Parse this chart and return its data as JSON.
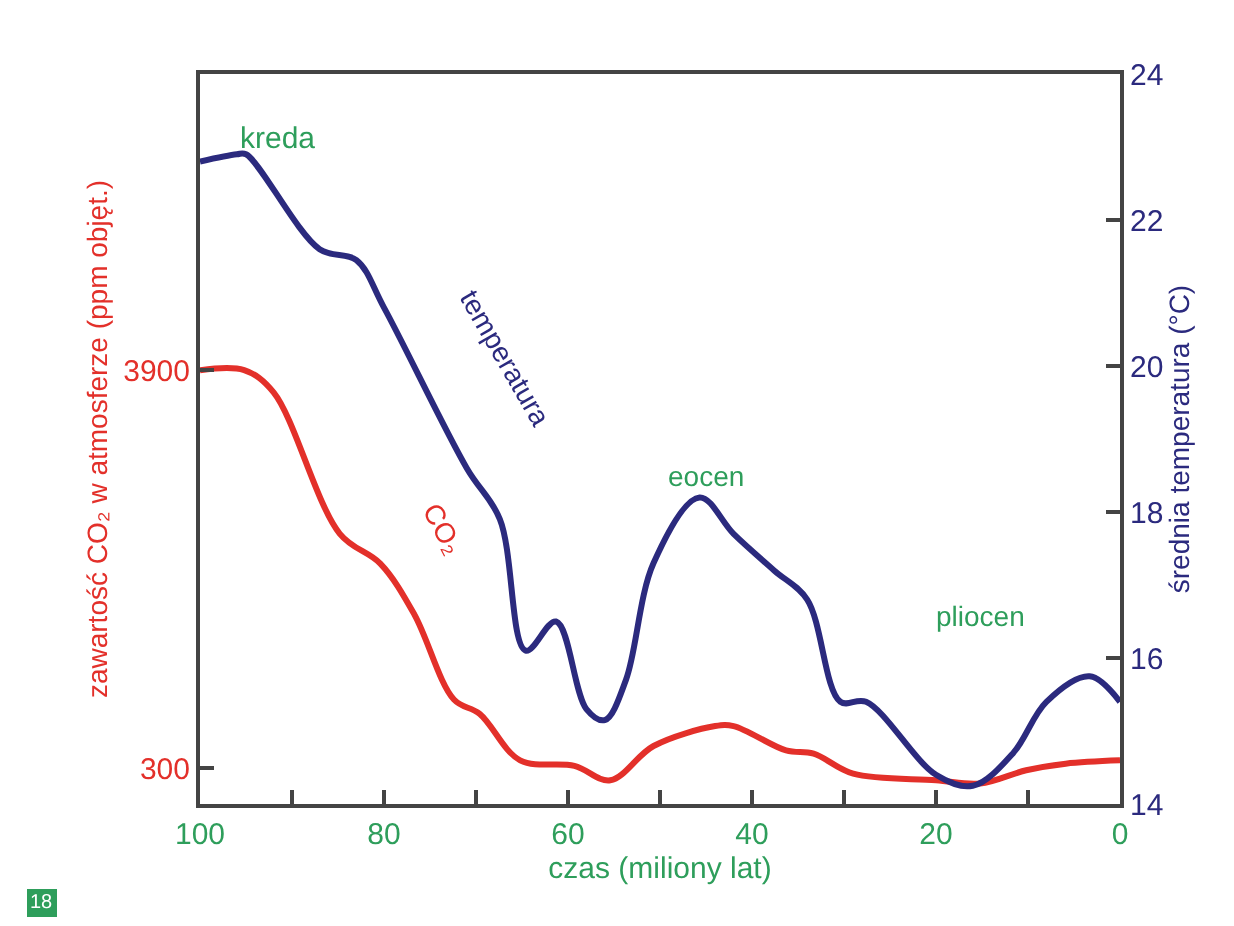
{
  "chart_data": {
    "type": "line",
    "xlabel": "czas (miliony lat)",
    "ylabel": "zawartość CO₂ w atmosferze (ppm objęt.)",
    "y2label": "średnia temperatura (°C)",
    "xlim": [
      100,
      0
    ],
    "xticks": [
      100,
      {
        "value": 90,
        "label": null
      },
      80,
      {
        "value": 70,
        "label": null
      },
      60,
      {
        "value": 50,
        "label": null
      },
      40,
      {
        "value": 30,
        "label": null
      },
      20,
      {
        "value": 10,
        "label": null
      },
      0
    ],
    "ylim": [
      -25,
      6580
    ],
    "yticks": [
      300,
      3900
    ],
    "y2lim": [
      14,
      24
    ],
    "y2ticks": [
      14,
      16,
      18,
      20,
      22,
      24
    ],
    "series": [
      {
        "name": "CO₂",
        "color": "#e3302a",
        "x": [
          100,
          95.2,
          92,
          84.8,
          80.4,
          76.7,
          72.4,
          69.6,
          65.2,
          59.3,
          55.4,
          50.7,
          44,
          42,
          36.3,
          33.3,
          29,
          20,
          15.2,
          10.2,
          5.9,
          0
        ],
        "values": [
          3900,
          3900,
          3700,
          2420,
          2150,
          1690,
          920,
          790,
          370,
          320,
          190,
          500,
          680,
          680,
          460,
          430,
          250,
          190,
          160,
          280,
          340,
          370
        ]
      },
      {
        "name": "temperatura",
        "color": "#2b2a7e",
        "axis": "y2",
        "x": [
          100,
          96,
          95,
          87,
          83,
          80,
          71,
          67.4,
          64.6,
          61.3,
          58,
          56,
          53.7,
          50.7,
          45.7,
          42,
          37.6,
          34,
          30.4,
          27.6,
          20,
          16,
          11.6,
          8,
          3.3,
          0
        ],
        "values": [
          22.8,
          22.9,
          22.9,
          21.6,
          21.45,
          20.8,
          18.6,
          17.9,
          16.1,
          16.5,
          15.3,
          15.15,
          15.7,
          17.3,
          18.2,
          17.7,
          17.2,
          16.8,
          15.4,
          15.4,
          14.4,
          14.25,
          14.7,
          15.4,
          15.75,
          15.4
        ]
      }
    ],
    "annotations": [
      "kreda",
      "eocen",
      "pliocen",
      "18"
    ],
    "legend": false,
    "line_style": "solid"
  }
}
